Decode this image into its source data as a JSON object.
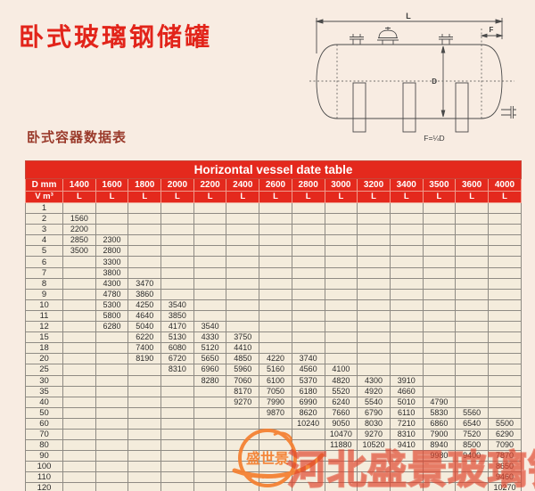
{
  "page": {
    "title": "卧式玻璃钢储罐",
    "subtitle": "卧式容器数据表"
  },
  "diagram": {
    "label_l": "L",
    "label_f": "F",
    "label_d": "D",
    "formula": "F=¼D"
  },
  "watermark": {
    "logo_text": "盛世景",
    "text": "河北盛景玻璃钢",
    "logo_color": "#f57f2f"
  },
  "table": {
    "title": "Horizontal vessel date table",
    "header_color": "#e4291d",
    "d_label": "D mm",
    "v_label": "V m³",
    "diameters": [
      "1400",
      "1600",
      "1800",
      "2000",
      "2200",
      "2400",
      "2600",
      "2800",
      "3000",
      "3200",
      "3400",
      "3500",
      "3600",
      "4000"
    ],
    "units": [
      "L",
      "L",
      "L",
      "L",
      "L",
      "L",
      "L",
      "L",
      "L",
      "L",
      "L",
      "L",
      "L",
      "L"
    ],
    "rows": [
      {
        "v": "1",
        "cells": [
          "",
          "",
          "",
          "",
          "",
          "",
          "",
          "",
          "",
          "",
          "",
          "",
          "",
          ""
        ]
      },
      {
        "v": "2",
        "cells": [
          "1560",
          "",
          "",
          "",
          "",
          "",
          "",
          "",
          "",
          "",
          "",
          "",
          "",
          ""
        ]
      },
      {
        "v": "3",
        "cells": [
          "2200",
          "",
          "",
          "",
          "",
          "",
          "",
          "",
          "",
          "",
          "",
          "",
          "",
          ""
        ]
      },
      {
        "v": "4",
        "cells": [
          "2850",
          "2300",
          "",
          "",
          "",
          "",
          "",
          "",
          "",
          "",
          "",
          "",
          "",
          ""
        ]
      },
      {
        "v": "5",
        "cells": [
          "3500",
          "2800",
          "",
          "",
          "",
          "",
          "",
          "",
          "",
          "",
          "",
          "",
          "",
          ""
        ]
      },
      {
        "v": "6",
        "cells": [
          "",
          "3300",
          "",
          "",
          "",
          "",
          "",
          "",
          "",
          "",
          "",
          "",
          "",
          ""
        ]
      },
      {
        "v": "7",
        "cells": [
          "",
          "3800",
          "",
          "",
          "",
          "",
          "",
          "",
          "",
          "",
          "",
          "",
          "",
          ""
        ]
      },
      {
        "v": "8",
        "cells": [
          "",
          "4300",
          "3470",
          "",
          "",
          "",
          "",
          "",
          "",
          "",
          "",
          "",
          "",
          ""
        ]
      },
      {
        "v": "9",
        "cells": [
          "",
          "4780",
          "3860",
          "",
          "",
          "",
          "",
          "",
          "",
          "",
          "",
          "",
          "",
          ""
        ]
      },
      {
        "v": "10",
        "cells": [
          "",
          "5300",
          "4250",
          "3540",
          "",
          "",
          "",
          "",
          "",
          "",
          "",
          "",
          "",
          ""
        ]
      },
      {
        "v": "11",
        "cells": [
          "",
          "5800",
          "4640",
          "3850",
          "",
          "",
          "",
          "",
          "",
          "",
          "",
          "",
          "",
          ""
        ]
      },
      {
        "v": "12",
        "cells": [
          "",
          "6280",
          "5040",
          "4170",
          "3540",
          "",
          "",
          "",
          "",
          "",
          "",
          "",
          "",
          ""
        ]
      },
      {
        "v": "15",
        "cells": [
          "",
          "",
          "6220",
          "5130",
          "4330",
          "3750",
          "",
          "",
          "",
          "",
          "",
          "",
          "",
          ""
        ]
      },
      {
        "v": "18",
        "cells": [
          "",
          "",
          "7400",
          "6080",
          "5120",
          "4410",
          "",
          "",
          "",
          "",
          "",
          "",
          "",
          ""
        ]
      },
      {
        "v": "20",
        "cells": [
          "",
          "",
          "8190",
          "6720",
          "5650",
          "4850",
          "4220",
          "3740",
          "",
          "",
          "",
          "",
          "",
          ""
        ]
      },
      {
        "v": "25",
        "cells": [
          "",
          "",
          "",
          "8310",
          "6960",
          "5960",
          "5160",
          "4560",
          "4100",
          "",
          "",
          "",
          "",
          ""
        ]
      },
      {
        "v": "30",
        "cells": [
          "",
          "",
          "",
          "",
          "8280",
          "7060",
          "6100",
          "5370",
          "4820",
          "4300",
          "3910",
          "",
          "",
          ""
        ]
      },
      {
        "v": "35",
        "cells": [
          "",
          "",
          "",
          "",
          "",
          "8170",
          "7050",
          "6180",
          "5520",
          "4920",
          "4660",
          "",
          "",
          ""
        ]
      },
      {
        "v": "40",
        "cells": [
          "",
          "",
          "",
          "",
          "",
          "9270",
          "7990",
          "6990",
          "6240",
          "5540",
          "5010",
          "4790",
          "",
          ""
        ]
      },
      {
        "v": "50",
        "cells": [
          "",
          "",
          "",
          "",
          "",
          "",
          "9870",
          "8620",
          "7660",
          "6790",
          "6110",
          "5830",
          "5560",
          ""
        ]
      },
      {
        "v": "60",
        "cells": [
          "",
          "",
          "",
          "",
          "",
          "",
          "",
          "10240",
          "9050",
          "8030",
          "7210",
          "6860",
          "6540",
          "5500"
        ]
      },
      {
        "v": "70",
        "cells": [
          "",
          "",
          "",
          "",
          "",
          "",
          "",
          "",
          "10470",
          "9270",
          "8310",
          "7900",
          "7520",
          "6290"
        ]
      },
      {
        "v": "80",
        "cells": [
          "",
          "",
          "",
          "",
          "",
          "",
          "",
          "",
          "11880",
          "10520",
          "9410",
          "8940",
          "8500",
          "7090"
        ]
      },
      {
        "v": "90",
        "cells": [
          "",
          "",
          "",
          "",
          "",
          "",
          "",
          "",
          "",
          "",
          "",
          "9980",
          "9400",
          "7870"
        ]
      },
      {
        "v": "100",
        "cells": [
          "",
          "",
          "",
          "",
          "",
          "",
          "",
          "",
          "",
          "",
          "",
          "",
          "",
          "8650"
        ]
      },
      {
        "v": "110",
        "cells": [
          "",
          "",
          "",
          "",
          "",
          "",
          "",
          "",
          "",
          "",
          "",
          "",
          "",
          "9460"
        ]
      },
      {
        "v": "120",
        "cells": [
          "",
          "",
          "",
          "",
          "",
          "",
          "",
          "",
          "",
          "",
          "",
          "",
          "",
          "10270"
        ]
      }
    ]
  }
}
